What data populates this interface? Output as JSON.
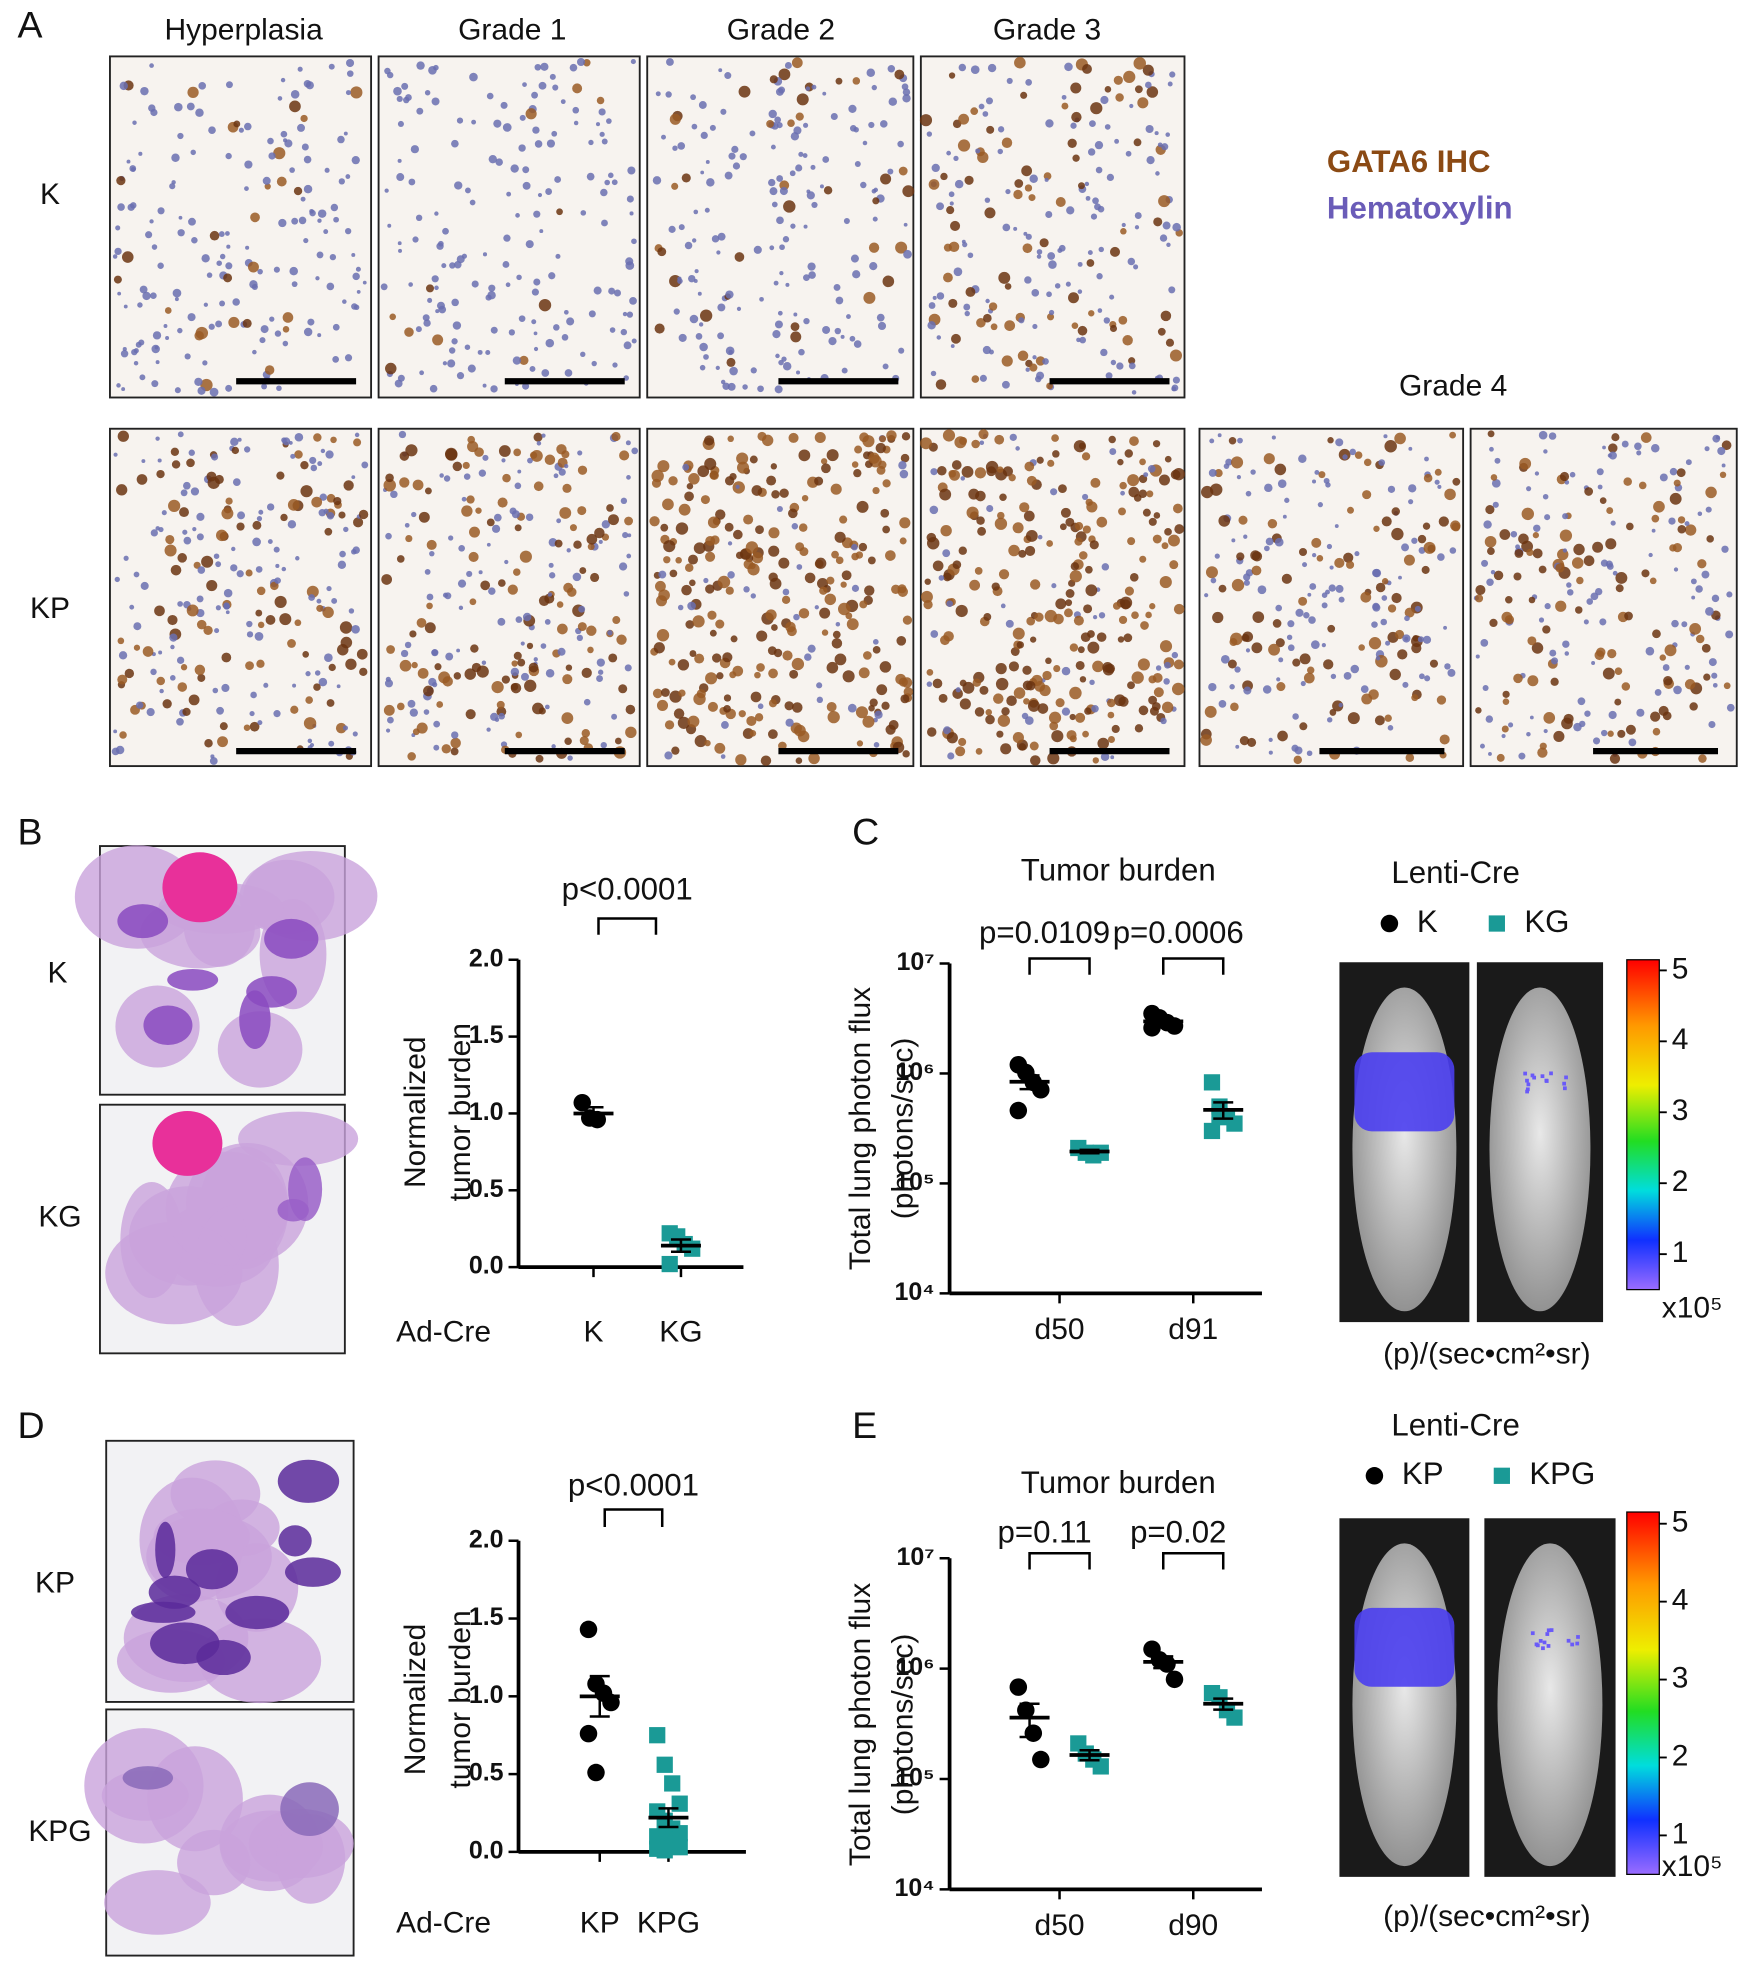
{
  "panel_labels": [
    "A",
    "B",
    "C",
    "D",
    "E"
  ],
  "panel_a": {
    "columns": [
      "Hyperplasia",
      "Grade 1",
      "Grade 2",
      "Grade 3"
    ],
    "extra_column": "Grade 4",
    "rows": [
      "K",
      "KP"
    ],
    "legend": [
      "GATA6 IHC",
      "Hematoxylin"
    ]
  },
  "panel_b": {
    "rows": [
      "K",
      "KG"
    ]
  },
  "panel_d": {
    "rows": [
      "KP",
      "KPG"
    ]
  },
  "imaging": [
    {
      "colorbar_ticks": [
        1,
        2,
        3,
        4,
        5
      ],
      "colorbar_lim": [
        0.5,
        5.15
      ],
      "multiplier": "x10⁵",
      "unit": "(p)/(sec•cm²•sr)"
    },
    {
      "colorbar_ticks": [
        1,
        2,
        3,
        4,
        5
      ],
      "colorbar_lim": [
        0.5,
        5.15
      ],
      "multiplier": "x10⁵",
      "unit": "(p)/(sec•cm²•sr)"
    }
  ],
  "chart_data": [
    {
      "type": "dot",
      "ylabel": [
        "Normalized",
        "tumor burden"
      ],
      "xlabel": "Ad-Cre",
      "categories": [
        "K",
        "KG"
      ],
      "values": [
        [
          1.07,
          0.97,
          0.96
        ],
        [
          0.22,
          0.2,
          0.15,
          0.12,
          0.02
        ]
      ],
      "means": [
        1.0,
        0.14
      ],
      "sems": [
        0.04,
        0.04
      ],
      "colors": [
        "#000000",
        "#1a9a96"
      ],
      "markers": [
        "circle",
        "square"
      ],
      "annotations": [
        "p<0.0001"
      ],
      "ylim": [
        0,
        2
      ],
      "yticks": [
        {
          "value": 0,
          "label": "0.0"
        },
        0.5,
        {
          "value": 1,
          "label": "1.0"
        },
        1.5,
        {
          "value": 2,
          "label": "2.0"
        }
      ]
    },
    {
      "type": "dot_grouped",
      "title": "Tumor burden",
      "ylabel": [
        "Total lung photon flux",
        "(photons/sec)"
      ],
      "categories": [
        "d50",
        "d91"
      ],
      "legend_title": "Lenti-Cre",
      "series": [
        {
          "name": "K",
          "color": "#000000",
          "marker": "circle",
          "values": [
            [
              1200000,
              1020000,
              830000,
              710000,
              460000
            ],
            [
              3500000,
              3200000,
              2900000,
              2700000,
              2600000
            ]
          ],
          "means": [
            840000,
            2980000
          ],
          "sems": [
            120000,
            160000
          ]
        },
        {
          "name": "KG",
          "color": "#1a9a96",
          "marker": "square",
          "values": [
            [
              210000,
              190000,
              180000,
              190000
            ],
            [
              830000,
              500000,
              400000,
              350000,
              300000,
              420000
            ]
          ],
          "means": [
            195000,
            467000
          ],
          "sems": [
            7000,
            79000
          ]
        }
      ],
      "annotations": [
        "p=0.0109",
        "p=0.0006"
      ],
      "log_scale": true,
      "ylim": [
        10000,
        10000000
      ],
      "yticks": [
        {
          "value": 10000,
          "label": "10⁴"
        },
        {
          "value": 100000,
          "label": "10⁵"
        },
        {
          "value": 1000000,
          "label": "10⁶"
        },
        {
          "value": 10000000,
          "label": "10⁷"
        }
      ]
    },
    {
      "type": "dot",
      "ylabel": [
        "Normalized",
        "tumor burden"
      ],
      "xlabel": "Ad-Cre",
      "categories": [
        "KP",
        "KPG"
      ],
      "values": [
        [
          1.43,
          1.08,
          1.02,
          0.96,
          0.76,
          0.51
        ],
        [
          0.75,
          0.56,
          0.44,
          0.31,
          0.26,
          0.2,
          0.15,
          0.12,
          0.1,
          0.08,
          0.05,
          0.03,
          0.02,
          0.01
        ]
      ],
      "means": [
        1.0,
        0.22
      ],
      "sems": [
        0.13,
        0.06
      ],
      "colors": [
        "#000000",
        "#1a9a96"
      ],
      "markers": [
        "circle",
        "square"
      ],
      "annotations": [
        "p<0.0001"
      ],
      "ylim": [
        0,
        2
      ],
      "yticks": [
        {
          "value": 0,
          "label": "0.0"
        },
        0.5,
        {
          "value": 1,
          "label": "1.0"
        },
        1.5,
        {
          "value": 2,
          "label": "2.0"
        }
      ]
    },
    {
      "type": "dot_grouped",
      "title": "Tumor burden",
      "ylabel": [
        "Total lung photon flux",
        "(photons/sec)"
      ],
      "categories": [
        "d50",
        "d90"
      ],
      "legend_title": "Lenti-Cre",
      "series": [
        {
          "name": "KP",
          "color": "#000000",
          "marker": "circle",
          "values": [
            [
              680000,
              420000,
              260000,
              150000
            ],
            [
              1500000,
              1200000,
              1100000,
              800000
            ]
          ],
          "means": [
            360000,
            1150000
          ],
          "sems": [
            120000,
            140000
          ]
        },
        {
          "name": "KPG",
          "color": "#1a9a96",
          "marker": "square",
          "values": [
            [
              210000,
              170000,
              150000,
              130000
            ],
            [
              600000,
              550000,
              420000,
              360000
            ]
          ],
          "means": [
            165000,
            480000
          ],
          "sems": [
            17000,
            55000
          ]
        }
      ],
      "annotations": [
        "p=0.11",
        "p=0.02"
      ],
      "log_scale": true,
      "ylim": [
        10000,
        10000000
      ],
      "yticks": [
        {
          "value": 10000,
          "label": "10⁴"
        },
        {
          "value": 100000,
          "label": "10⁵"
        },
        {
          "value": 1000000,
          "label": "10⁶"
        },
        {
          "value": 10000000,
          "label": "10⁷"
        }
      ]
    }
  ]
}
